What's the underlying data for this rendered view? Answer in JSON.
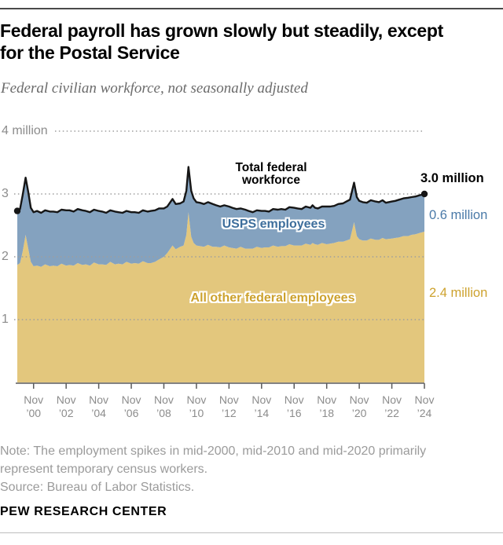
{
  "header": {
    "title_line1": "Federal payroll has grown slowly but steadily, except",
    "title_line2": "for the Postal Service",
    "subtitle": "Federal civilian workforce, not seasonally adjusted"
  },
  "chart_data": {
    "type": "area",
    "stacked": true,
    "title": "Federal civilian workforce, not seasonally adjusted",
    "unit": "millions of employees",
    "xlim": [
      1999.87,
      2024.87
    ],
    "ylim": [
      0,
      4
    ],
    "grid_values": [
      4,
      3,
      2,
      1
    ],
    "y_ticks": [
      {
        "value": 4,
        "label": "4 million"
      },
      {
        "value": 3,
        "label": "3"
      },
      {
        "value": 2,
        "label": "2"
      },
      {
        "value": 1,
        "label": "1"
      }
    ],
    "x_tick_month": "Nov",
    "x_tick_years": [
      "’00",
      "’02",
      "’04",
      "’06",
      "’08",
      "’10",
      "’12",
      "’14",
      "’16",
      "’18",
      "’20",
      "’22",
      "’24"
    ],
    "x_tick_positions": [
      2000.87,
      2002.87,
      2004.87,
      2006.87,
      2008.87,
      2010.87,
      2012.87,
      2014.87,
      2016.87,
      2018.87,
      2020.87,
      2022.87,
      2024.87
    ],
    "x": [
      1999.87,
      2000.04,
      2000.2,
      2000.38,
      2000.55,
      2000.7,
      2000.87,
      2001.08,
      2001.33,
      2001.58,
      2001.87,
      2002.08,
      2002.33,
      2002.58,
      2002.87,
      2003.08,
      2003.33,
      2003.58,
      2003.87,
      2004.08,
      2004.33,
      2004.58,
      2004.87,
      2005.08,
      2005.33,
      2005.58,
      2005.87,
      2006.08,
      2006.33,
      2006.58,
      2006.87,
      2007.08,
      2007.33,
      2007.58,
      2007.87,
      2008.08,
      2008.33,
      2008.58,
      2008.87,
      2009.08,
      2009.4,
      2009.6,
      2009.87,
      2010.08,
      2010.25,
      2010.38,
      2010.55,
      2010.7,
      2010.87,
      2011.08,
      2011.33,
      2011.58,
      2011.87,
      2012.08,
      2012.33,
      2012.58,
      2012.87,
      2013.08,
      2013.33,
      2013.58,
      2013.87,
      2014.08,
      2014.33,
      2014.58,
      2014.87,
      2015.08,
      2015.33,
      2015.58,
      2015.87,
      2016.08,
      2016.33,
      2016.58,
      2016.87,
      2017.08,
      2017.33,
      2017.58,
      2017.87,
      2018.0,
      2018.15,
      2018.33,
      2018.58,
      2018.87,
      2019.08,
      2019.33,
      2019.58,
      2019.87,
      2020.08,
      2020.3,
      2020.55,
      2020.72,
      2020.87,
      2021.08,
      2021.33,
      2021.58,
      2021.87,
      2022.08,
      2022.3,
      2022.5,
      2022.87,
      2023.08,
      2023.33,
      2023.58,
      2023.87,
      2024.08,
      2024.33,
      2024.58,
      2024.87
    ],
    "series": [
      {
        "name": "Total federal workforce",
        "values": [
          2.73,
          2.76,
          2.98,
          3.26,
          3.02,
          2.78,
          2.71,
          2.73,
          2.7,
          2.74,
          2.72,
          2.72,
          2.71,
          2.75,
          2.74,
          2.74,
          2.72,
          2.76,
          2.74,
          2.73,
          2.71,
          2.75,
          2.73,
          2.72,
          2.7,
          2.74,
          2.72,
          2.71,
          2.7,
          2.73,
          2.71,
          2.71,
          2.7,
          2.74,
          2.72,
          2.73,
          2.74,
          2.77,
          2.77,
          2.8,
          2.92,
          2.84,
          2.85,
          2.88,
          3.05,
          3.43,
          3.05,
          2.93,
          2.87,
          2.86,
          2.84,
          2.87,
          2.84,
          2.82,
          2.8,
          2.82,
          2.8,
          2.78,
          2.76,
          2.77,
          2.75,
          2.73,
          2.71,
          2.74,
          2.73,
          2.73,
          2.72,
          2.76,
          2.75,
          2.76,
          2.75,
          2.79,
          2.78,
          2.77,
          2.76,
          2.8,
          2.78,
          2.82,
          2.78,
          2.77,
          2.8,
          2.8,
          2.8,
          2.81,
          2.84,
          2.85,
          2.88,
          2.91,
          3.18,
          2.95,
          2.89,
          2.87,
          2.86,
          2.9,
          2.88,
          2.87,
          2.9,
          2.86,
          2.88,
          2.89,
          2.91,
          2.93,
          2.94,
          2.95,
          2.96,
          2.98,
          3.0
        ]
      },
      {
        "name": "All other federal employees",
        "values": [
          1.87,
          1.9,
          2.08,
          2.35,
          2.12,
          1.92,
          1.85,
          1.86,
          1.84,
          1.88,
          1.85,
          1.86,
          1.85,
          1.89,
          1.86,
          1.87,
          1.86,
          1.9,
          1.87,
          1.88,
          1.86,
          1.91,
          1.88,
          1.88,
          1.87,
          1.92,
          1.88,
          1.89,
          1.88,
          1.92,
          1.89,
          1.9,
          1.89,
          1.93,
          1.9,
          1.9,
          1.92,
          1.96,
          2.0,
          2.06,
          2.18,
          2.12,
          2.16,
          2.18,
          2.35,
          2.71,
          2.32,
          2.22,
          2.18,
          2.17,
          2.16,
          2.19,
          2.16,
          2.16,
          2.15,
          2.18,
          2.15,
          2.14,
          2.13,
          2.16,
          2.13,
          2.13,
          2.13,
          2.16,
          2.14,
          2.15,
          2.15,
          2.18,
          2.16,
          2.17,
          2.17,
          2.2,
          2.18,
          2.18,
          2.18,
          2.21,
          2.19,
          2.22,
          2.2,
          2.19,
          2.22,
          2.2,
          2.21,
          2.22,
          2.24,
          2.24,
          2.26,
          2.28,
          2.55,
          2.33,
          2.28,
          2.26,
          2.26,
          2.29,
          2.27,
          2.27,
          2.3,
          2.28,
          2.29,
          2.3,
          2.31,
          2.33,
          2.33,
          2.35,
          2.36,
          2.38,
          2.4
        ]
      }
    ],
    "colors": {
      "total_line": "#161616",
      "usps_fill": "#84a2bf",
      "other_fill": "#e3c77d",
      "usps_text": "#3d6e9c",
      "usps_value_text": "#4a7aa8",
      "other_text": "#cda22e",
      "grid": "#9e9e9e",
      "axis": "#5a5a5a"
    },
    "in_chart_labels": {
      "total_line1": "Total federal",
      "total_line2": "workforce",
      "usps": "USPS employees",
      "other": "All other federal employees"
    },
    "end_values": {
      "total": "3.0 million",
      "usps": "0.6 million",
      "other": "2.4 million"
    }
  },
  "footer": {
    "note": "Note: The employment spikes in mid-2000, mid-2010 and mid-2020 primarily represent temporary census workers.",
    "source": "Source: Bureau of Labor Statistics.",
    "brand": "PEW RESEARCH CENTER"
  }
}
